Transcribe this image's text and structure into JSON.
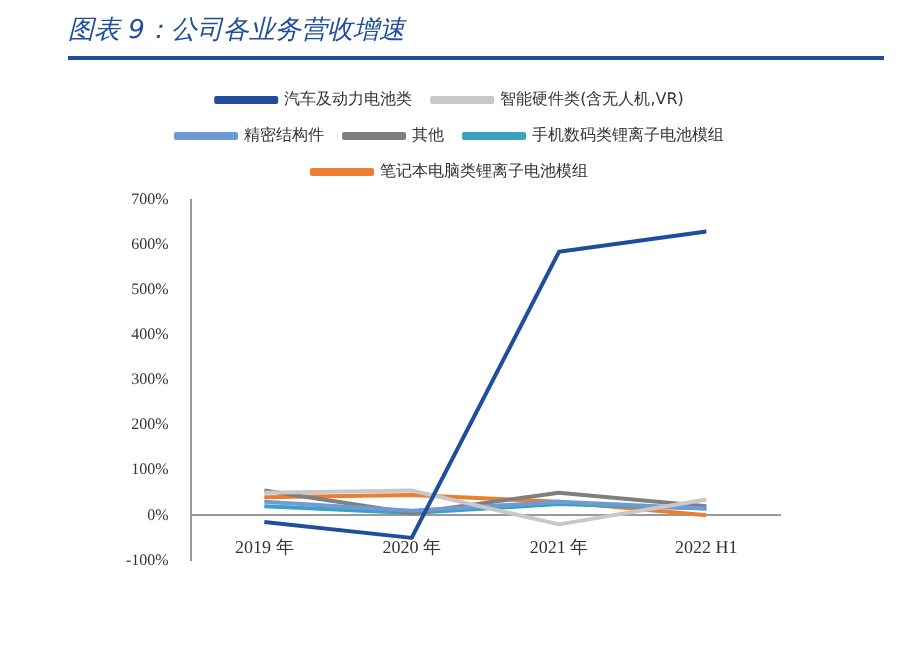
{
  "chart_data": {
    "type": "line",
    "title": "图表 9：公司各业务营收增速",
    "categories": [
      "2019 年",
      "2020 年",
      "2021 年",
      "2022 H1"
    ],
    "series": [
      {
        "name": "汽车及动力电池类",
        "color": "#1f4e9c",
        "values": [
          -15,
          -50,
          585,
          630
        ]
      },
      {
        "name": "智能硬件类(含无人机,VR)",
        "color": "#c8c8c8",
        "values": [
          50,
          55,
          -20,
          35
        ]
      },
      {
        "name": "精密结构件",
        "color": "#6e9bd6",
        "values": [
          30,
          10,
          30,
          15
        ]
      },
      {
        "name": "其他",
        "color": "#7f7f7f",
        "values": [
          55,
          5,
          50,
          20
        ]
      },
      {
        "name": "手机数码类锂离子电池模组",
        "color": "#3ba3c0",
        "values": [
          20,
          5,
          25,
          15
        ]
      },
      {
        "name": "笔记本电脑类锂离子电池模组",
        "color": "#ed7d31",
        "values": [
          40,
          45,
          30,
          0
        ]
      }
    ],
    "ylim": [
      -100,
      700
    ],
    "yticks": [
      {
        "value": -100,
        "label": "-100%"
      },
      {
        "value": 0,
        "label": "0%"
      },
      {
        "value": 100,
        "label": "100%"
      },
      {
        "value": 200,
        "label": "200%"
      },
      {
        "value": 300,
        "label": "300%"
      },
      {
        "value": 400,
        "label": "400%"
      },
      {
        "value": 500,
        "label": "500%"
      },
      {
        "value": 600,
        "label": "600%"
      },
      {
        "value": 700,
        "label": "700%"
      }
    ],
    "grid": false,
    "legend": "top",
    "marker": "none",
    "line_style": "solid"
  }
}
